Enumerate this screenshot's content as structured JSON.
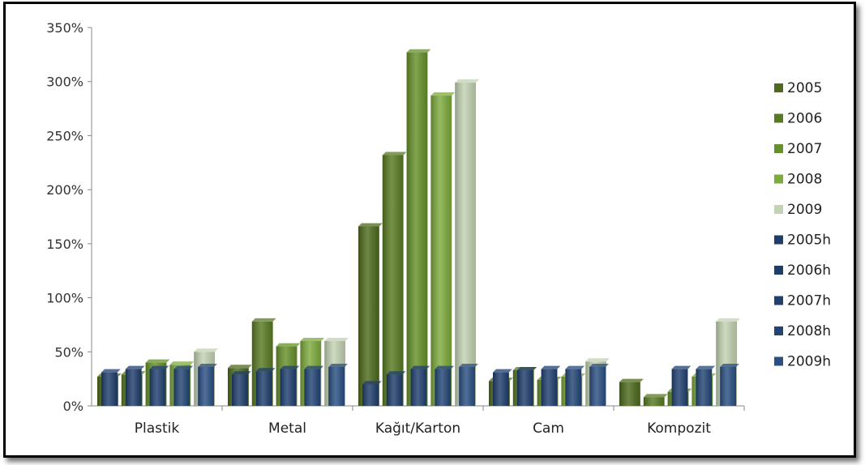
{
  "chart_data": {
    "type": "bar",
    "categories": [
      "Plastik",
      "Metal",
      "Kağıt/Karton",
      "Cam",
      "Kompozit"
    ],
    "ylim": [
      0,
      350
    ],
    "yticks": [
      "0%",
      "50%",
      "100%",
      "150%",
      "200%",
      "250%",
      "300%",
      "350%"
    ],
    "grid": false,
    "legend_position": "right",
    "series": [
      {
        "name": "2005",
        "color": "#4d6a1c",
        "values": [
          27,
          35,
          166,
          23,
          22
        ]
      },
      {
        "name": "2006",
        "color": "#587a22",
        "values": [
          29,
          78,
          232,
          33,
          8
        ]
      },
      {
        "name": "2007",
        "color": "#66902a",
        "values": [
          40,
          55,
          327,
          24,
          13
        ]
      },
      {
        "name": "2008",
        "color": "#7daa3c",
        "values": [
          38,
          60,
          287,
          27,
          27
        ]
      },
      {
        "name": "2009",
        "color": "#c3d2b2",
        "values": [
          50,
          60,
          299,
          41,
          78
        ]
      },
      {
        "name": "2005h",
        "color": "#1f3d6b",
        "values": [
          31,
          29,
          20,
          31,
          0
        ]
      },
      {
        "name": "2006h",
        "color": "#1f3d6b",
        "values": [
          34,
          32,
          29,
          33,
          0
        ]
      },
      {
        "name": "2007h",
        "color": "#203f70",
        "values": [
          34,
          34,
          34,
          34,
          34
        ]
      },
      {
        "name": "2008h",
        "color": "#234575",
        "values": [
          34,
          34,
          34,
          34,
          34
        ]
      },
      {
        "name": "2009h",
        "color": "#2a4f82",
        "values": [
          36,
          36,
          36,
          36,
          36
        ]
      }
    ]
  }
}
